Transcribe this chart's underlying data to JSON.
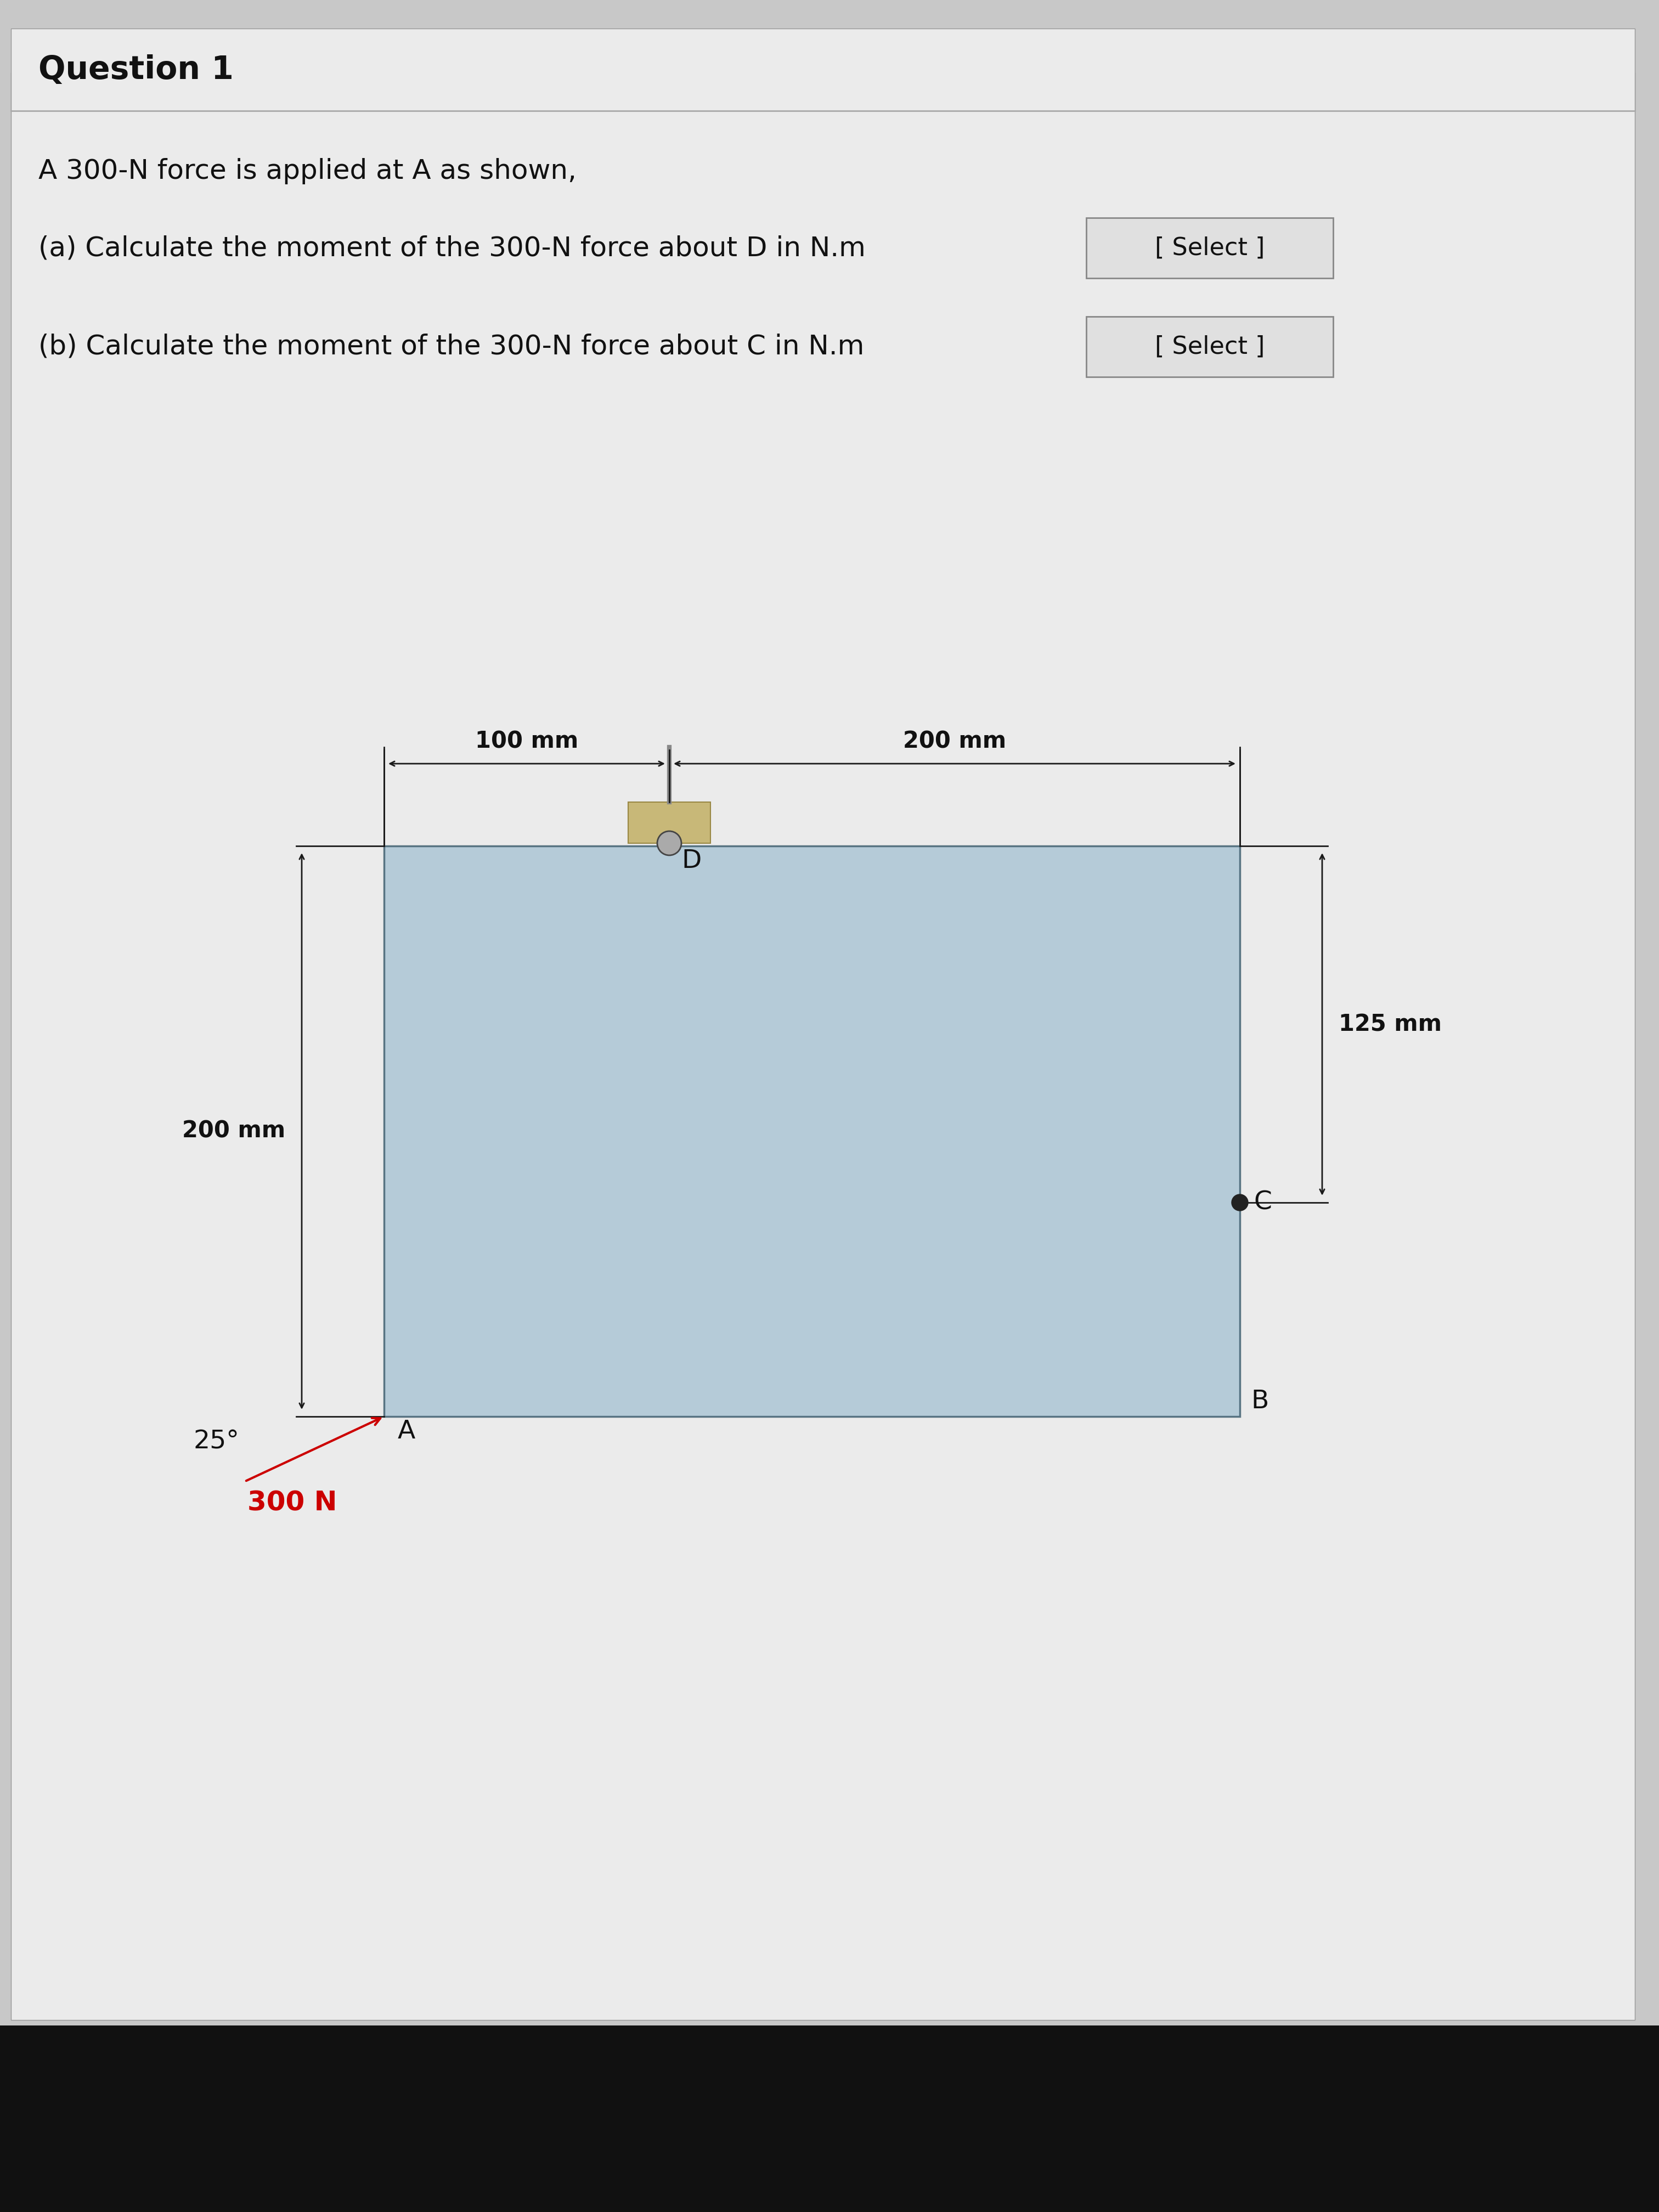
{
  "bg_color": "#c8c8c8",
  "white_panel_color": "#ebebeb",
  "title": "Question 1",
  "line1": "A 300-N force is applied at A as shown,",
  "line2a": "(a) Calculate the moment of the 300-N force about D in N.m",
  "line2b": "(b) Calculate the moment of the 300-N force about C in N.m",
  "select_text": "[ Select ]",
  "dim_100": "100 mm",
  "dim_200_top": "200 mm",
  "dim_200_left": "200 mm",
  "dim_125": "125 mm",
  "label_A": "A",
  "label_B": "B",
  "label_C": "C",
  "label_D": "D",
  "force_label": "300 N",
  "angle_label": "25°",
  "rect_color": "#a8c4d4",
  "line_color": "#1a1a1a",
  "force_color": "#cc0000",
  "pin_bracket_color": "#c8b878",
  "select_box_color": "#e0e0e0",
  "select_box_edge": "#888888",
  "title_fontsize": 42,
  "text_fontsize": 36,
  "label_fontsize": 34,
  "dim_fontsize": 30
}
